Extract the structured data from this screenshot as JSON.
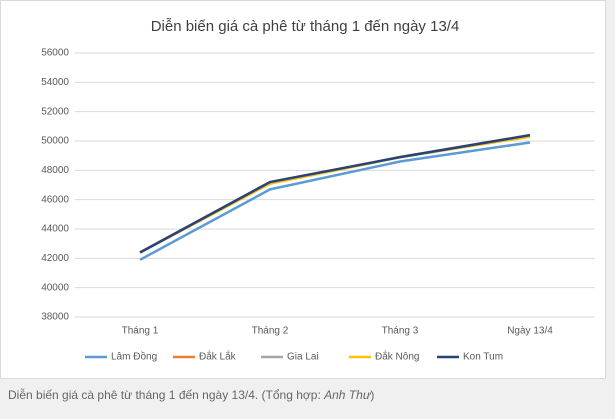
{
  "chart_data": {
    "type": "line",
    "title": "Diễn biến giá cà phê từ tháng 1 đến ngày 13/4",
    "categories": [
      "Tháng 1",
      "Tháng 2",
      "Tháng 3",
      "Ngày 13/4"
    ],
    "series": [
      {
        "name": "Lâm Đồng",
        "color": "#5b9bd5",
        "values": [
          41900,
          46700,
          48600,
          49900
        ]
      },
      {
        "name": "Đắk Lắk",
        "color": "#ed7d31",
        "values": [
          42400,
          47200,
          48900,
          50400
        ]
      },
      {
        "name": "Gia Lai",
        "color": "#a5a5a5",
        "values": [
          42400,
          47100,
          48900,
          50300
        ]
      },
      {
        "name": "Đắk Nông",
        "color": "#ffc000",
        "values": [
          42400,
          47100,
          48900,
          50300
        ]
      },
      {
        "name": "Kon Tum",
        "color": "#264478",
        "values": [
          42400,
          47200,
          48900,
          50400
        ]
      }
    ],
    "ylim": [
      38000,
      56000
    ],
    "yticks": [
      38000,
      40000,
      42000,
      44000,
      46000,
      48000,
      50000,
      52000,
      54000,
      56000
    ],
    "grid": true,
    "legend": "bottom"
  },
  "caption": {
    "prefix": "Diễn biến giá cà phê từ tháng 1 đến ngày 13/4. (Tổng hợp: ",
    "author": "Anh Thư",
    "suffix": ")"
  }
}
